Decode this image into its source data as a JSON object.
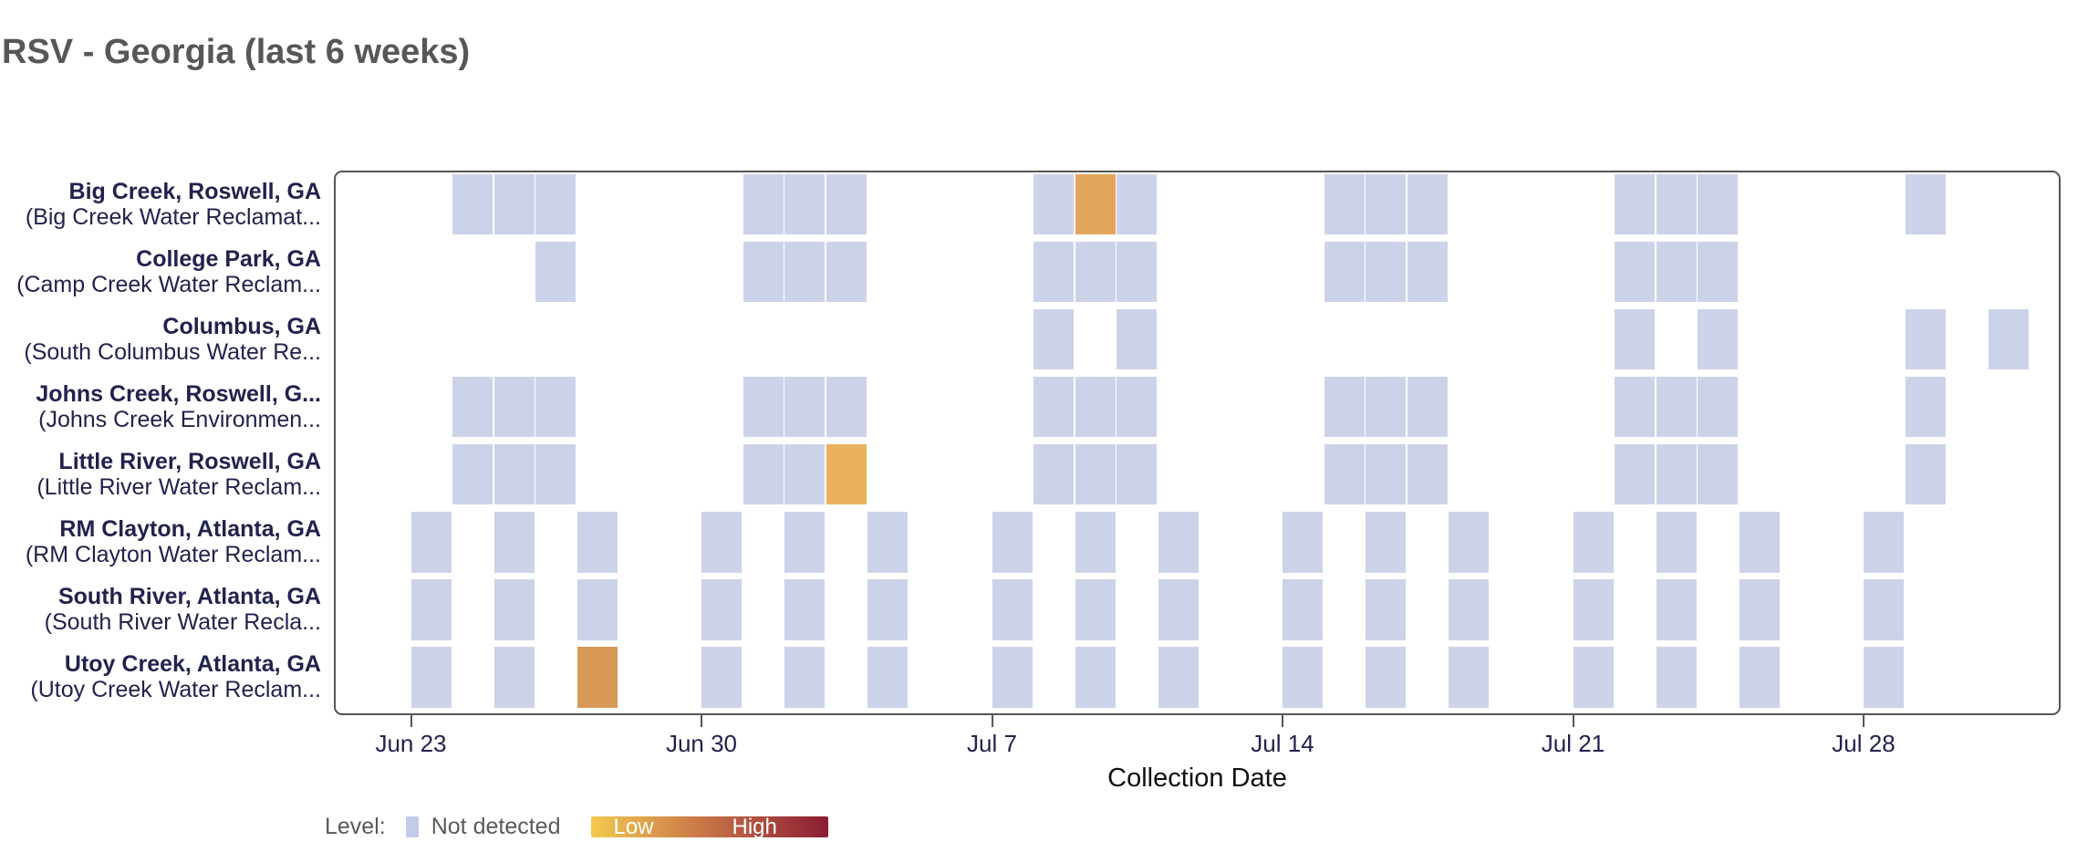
{
  "chart_data": {
    "type": "heatmap",
    "title": "RSV - Georgia (last 6 weeks)",
    "xlabel": "Collection Date",
    "x_domain": [
      "Jun 21",
      "Aug 1"
    ],
    "grid": false,
    "legend_position": "bottom-left",
    "x_ticks": [
      {
        "label": "Jun 23",
        "day": 0
      },
      {
        "label": "Jun 30",
        "day": 7
      },
      {
        "label": "Jul 7",
        "day": 14
      },
      {
        "label": "Jul 14",
        "day": 21
      },
      {
        "label": "Jul 21",
        "day": 28
      },
      {
        "label": "Jul 28",
        "day": 35
      }
    ],
    "legend": {
      "title": "Level:",
      "categories": [
        {
          "label": "Not detected",
          "color": "#c2cbe9"
        }
      ],
      "gradient": {
        "low_label": "Low",
        "high_label": "High",
        "start_color": "#f3c94f",
        "mid_color": "#c06845",
        "end_color": "#8c1c33"
      }
    },
    "levels": {
      "not_detected": "#ccd3e9"
    },
    "rows": [
      {
        "site": "Big Creek, Roswell, GA",
        "facility": "(Big Creek Water Reclamat...",
        "cells": [
          {
            "date": "Jun 24",
            "day": 1,
            "level": "not_detected"
          },
          {
            "date": "Jun 25",
            "day": 2,
            "level": "not_detected"
          },
          {
            "date": "Jun 26",
            "day": 3,
            "level": "not_detected"
          },
          {
            "date": "Jul 1",
            "day": 8,
            "level": "not_detected"
          },
          {
            "date": "Jul 2",
            "day": 9,
            "level": "not_detected"
          },
          {
            "date": "Jul 3",
            "day": 10,
            "level": "not_detected"
          },
          {
            "date": "Jul 8",
            "day": 15,
            "level": "not_detected"
          },
          {
            "date": "Jul 9",
            "day": 16,
            "level": "low",
            "color": "#e2a75c"
          },
          {
            "date": "Jul 10",
            "day": 17,
            "level": "not_detected"
          },
          {
            "date": "Jul 15",
            "day": 22,
            "level": "not_detected"
          },
          {
            "date": "Jul 16",
            "day": 23,
            "level": "not_detected"
          },
          {
            "date": "Jul 17",
            "day": 24,
            "level": "not_detected"
          },
          {
            "date": "Jul 22",
            "day": 29,
            "level": "not_detected"
          },
          {
            "date": "Jul 23",
            "day": 30,
            "level": "not_detected"
          },
          {
            "date": "Jul 24",
            "day": 31,
            "level": "not_detected"
          },
          {
            "date": "Jul 29",
            "day": 36,
            "level": "not_detected"
          }
        ]
      },
      {
        "site": "College Park, GA",
        "facility": "(Camp Creek Water Reclam...",
        "cells": [
          {
            "date": "Jun 26",
            "day": 3,
            "level": "not_detected"
          },
          {
            "date": "Jul 1",
            "day": 8,
            "level": "not_detected"
          },
          {
            "date": "Jul 2",
            "day": 9,
            "level": "not_detected"
          },
          {
            "date": "Jul 3",
            "day": 10,
            "level": "not_detected"
          },
          {
            "date": "Jul 8",
            "day": 15,
            "level": "not_detected"
          },
          {
            "date": "Jul 9",
            "day": 16,
            "level": "not_detected"
          },
          {
            "date": "Jul 10",
            "day": 17,
            "level": "not_detected"
          },
          {
            "date": "Jul 15",
            "day": 22,
            "level": "not_detected"
          },
          {
            "date": "Jul 16",
            "day": 23,
            "level": "not_detected"
          },
          {
            "date": "Jul 17",
            "day": 24,
            "level": "not_detected"
          },
          {
            "date": "Jul 22",
            "day": 29,
            "level": "not_detected"
          },
          {
            "date": "Jul 23",
            "day": 30,
            "level": "not_detected"
          },
          {
            "date": "Jul 24",
            "day": 31,
            "level": "not_detected"
          }
        ]
      },
      {
        "site": "Columbus, GA",
        "facility": "(South Columbus Water Re...",
        "cells": [
          {
            "date": "Jul 8",
            "day": 15,
            "level": "not_detected"
          },
          {
            "date": "Jul 10",
            "day": 17,
            "level": "not_detected"
          },
          {
            "date": "Jul 22",
            "day": 29,
            "level": "not_detected"
          },
          {
            "date": "Jul 24",
            "day": 31,
            "level": "not_detected"
          },
          {
            "date": "Jul 29",
            "day": 36,
            "level": "not_detected"
          },
          {
            "date": "Jul 31",
            "day": 38,
            "level": "not_detected"
          }
        ]
      },
      {
        "site": "Johns Creek, Roswell, G...",
        "facility": "(Johns Creek Environmen...",
        "cells": [
          {
            "date": "Jun 24",
            "day": 1,
            "level": "not_detected"
          },
          {
            "date": "Jun 25",
            "day": 2,
            "level": "not_detected"
          },
          {
            "date": "Jun 26",
            "day": 3,
            "level": "not_detected"
          },
          {
            "date": "Jul 1",
            "day": 8,
            "level": "not_detected"
          },
          {
            "date": "Jul 2",
            "day": 9,
            "level": "not_detected"
          },
          {
            "date": "Jul 3",
            "day": 10,
            "level": "not_detected"
          },
          {
            "date": "Jul 8",
            "day": 15,
            "level": "not_detected"
          },
          {
            "date": "Jul 9",
            "day": 16,
            "level": "not_detected"
          },
          {
            "date": "Jul 10",
            "day": 17,
            "level": "not_detected"
          },
          {
            "date": "Jul 15",
            "day": 22,
            "level": "not_detected"
          },
          {
            "date": "Jul 16",
            "day": 23,
            "level": "not_detected"
          },
          {
            "date": "Jul 17",
            "day": 24,
            "level": "not_detected"
          },
          {
            "date": "Jul 22",
            "day": 29,
            "level": "not_detected"
          },
          {
            "date": "Jul 23",
            "day": 30,
            "level": "not_detected"
          },
          {
            "date": "Jul 24",
            "day": 31,
            "level": "not_detected"
          },
          {
            "date": "Jul 29",
            "day": 36,
            "level": "not_detected"
          }
        ]
      },
      {
        "site": "Little River, Roswell, GA",
        "facility": "(Little River Water Reclam...",
        "cells": [
          {
            "date": "Jun 24",
            "day": 1,
            "level": "not_detected"
          },
          {
            "date": "Jun 25",
            "day": 2,
            "level": "not_detected"
          },
          {
            "date": "Jun 26",
            "day": 3,
            "level": "not_detected"
          },
          {
            "date": "Jul 1",
            "day": 8,
            "level": "not_detected"
          },
          {
            "date": "Jul 2",
            "day": 9,
            "level": "not_detected"
          },
          {
            "date": "Jul 3",
            "day": 10,
            "level": "low",
            "color": "#eab25e"
          },
          {
            "date": "Jul 8",
            "day": 15,
            "level": "not_detected"
          },
          {
            "date": "Jul 9",
            "day": 16,
            "level": "not_detected"
          },
          {
            "date": "Jul 10",
            "day": 17,
            "level": "not_detected"
          },
          {
            "date": "Jul 15",
            "day": 22,
            "level": "not_detected"
          },
          {
            "date": "Jul 16",
            "day": 23,
            "level": "not_detected"
          },
          {
            "date": "Jul 17",
            "day": 24,
            "level": "not_detected"
          },
          {
            "date": "Jul 22",
            "day": 29,
            "level": "not_detected"
          },
          {
            "date": "Jul 23",
            "day": 30,
            "level": "not_detected"
          },
          {
            "date": "Jul 24",
            "day": 31,
            "level": "not_detected"
          },
          {
            "date": "Jul 29",
            "day": 36,
            "level": "not_detected"
          }
        ]
      },
      {
        "site": "RM Clayton, Atlanta, GA",
        "facility": "(RM Clayton Water Reclam...",
        "cells": [
          {
            "date": "Jun 23",
            "day": 0,
            "level": "not_detected"
          },
          {
            "date": "Jun 25",
            "day": 2,
            "level": "not_detected"
          },
          {
            "date": "Jun 27",
            "day": 4,
            "level": "not_detected"
          },
          {
            "date": "Jun 30",
            "day": 7,
            "level": "not_detected"
          },
          {
            "date": "Jul 2",
            "day": 9,
            "level": "not_detected"
          },
          {
            "date": "Jul 4",
            "day": 11,
            "level": "not_detected"
          },
          {
            "date": "Jul 7",
            "day": 14,
            "level": "not_detected"
          },
          {
            "date": "Jul 9",
            "day": 16,
            "level": "not_detected"
          },
          {
            "date": "Jul 11",
            "day": 18,
            "level": "not_detected"
          },
          {
            "date": "Jul 14",
            "day": 21,
            "level": "not_detected"
          },
          {
            "date": "Jul 16",
            "day": 23,
            "level": "not_detected"
          },
          {
            "date": "Jul 18",
            "day": 25,
            "level": "not_detected"
          },
          {
            "date": "Jul 21",
            "day": 28,
            "level": "not_detected"
          },
          {
            "date": "Jul 23",
            "day": 30,
            "level": "not_detected"
          },
          {
            "date": "Jul 25",
            "day": 32,
            "level": "not_detected"
          },
          {
            "date": "Jul 28",
            "day": 35,
            "level": "not_detected"
          }
        ]
      },
      {
        "site": "South River, Atlanta, GA",
        "facility": "(South River Water Recla...",
        "cells": [
          {
            "date": "Jun 23",
            "day": 0,
            "level": "not_detected"
          },
          {
            "date": "Jun 25",
            "day": 2,
            "level": "not_detected"
          },
          {
            "date": "Jun 27",
            "day": 4,
            "level": "not_detected"
          },
          {
            "date": "Jun 30",
            "day": 7,
            "level": "not_detected"
          },
          {
            "date": "Jul 2",
            "day": 9,
            "level": "not_detected"
          },
          {
            "date": "Jul 4",
            "day": 11,
            "level": "not_detected"
          },
          {
            "date": "Jul 7",
            "day": 14,
            "level": "not_detected"
          },
          {
            "date": "Jul 9",
            "day": 16,
            "level": "not_detected"
          },
          {
            "date": "Jul 11",
            "day": 18,
            "level": "not_detected"
          },
          {
            "date": "Jul 14",
            "day": 21,
            "level": "not_detected"
          },
          {
            "date": "Jul 16",
            "day": 23,
            "level": "not_detected"
          },
          {
            "date": "Jul 18",
            "day": 25,
            "level": "not_detected"
          },
          {
            "date": "Jul 21",
            "day": 28,
            "level": "not_detected"
          },
          {
            "date": "Jul 23",
            "day": 30,
            "level": "not_detected"
          },
          {
            "date": "Jul 25",
            "day": 32,
            "level": "not_detected"
          },
          {
            "date": "Jul 28",
            "day": 35,
            "level": "not_detected"
          }
        ]
      },
      {
        "site": "Utoy Creek, Atlanta, GA",
        "facility": "(Utoy Creek Water Reclam...",
        "cells": [
          {
            "date": "Jun 23",
            "day": 0,
            "level": "not_detected"
          },
          {
            "date": "Jun 25",
            "day": 2,
            "level": "not_detected"
          },
          {
            "date": "Jun 27",
            "day": 4,
            "level": "low",
            "color": "#d89856"
          },
          {
            "date": "Jun 30",
            "day": 7,
            "level": "not_detected"
          },
          {
            "date": "Jul 2",
            "day": 9,
            "level": "not_detected"
          },
          {
            "date": "Jul 4",
            "day": 11,
            "level": "not_detected"
          },
          {
            "date": "Jul 7",
            "day": 14,
            "level": "not_detected"
          },
          {
            "date": "Jul 9",
            "day": 16,
            "level": "not_detected"
          },
          {
            "date": "Jul 11",
            "day": 18,
            "level": "not_detected"
          },
          {
            "date": "Jul 14",
            "day": 21,
            "level": "not_detected"
          },
          {
            "date": "Jul 16",
            "day": 23,
            "level": "not_detected"
          },
          {
            "date": "Jul 18",
            "day": 25,
            "level": "not_detected"
          },
          {
            "date": "Jul 21",
            "day": 28,
            "level": "not_detected"
          },
          {
            "date": "Jul 23",
            "day": 30,
            "level": "not_detected"
          },
          {
            "date": "Jul 25",
            "day": 32,
            "level": "not_detected"
          },
          {
            "date": "Jul 28",
            "day": 35,
            "level": "not_detected"
          }
        ]
      }
    ]
  }
}
